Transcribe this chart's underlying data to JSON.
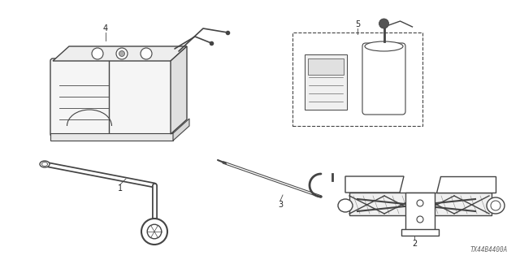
{
  "background_color": "#ffffff",
  "part_number": "TX44B4400A",
  "line_color": "#444444",
  "text_color": "#222222",
  "part_number_color": "#666666"
}
